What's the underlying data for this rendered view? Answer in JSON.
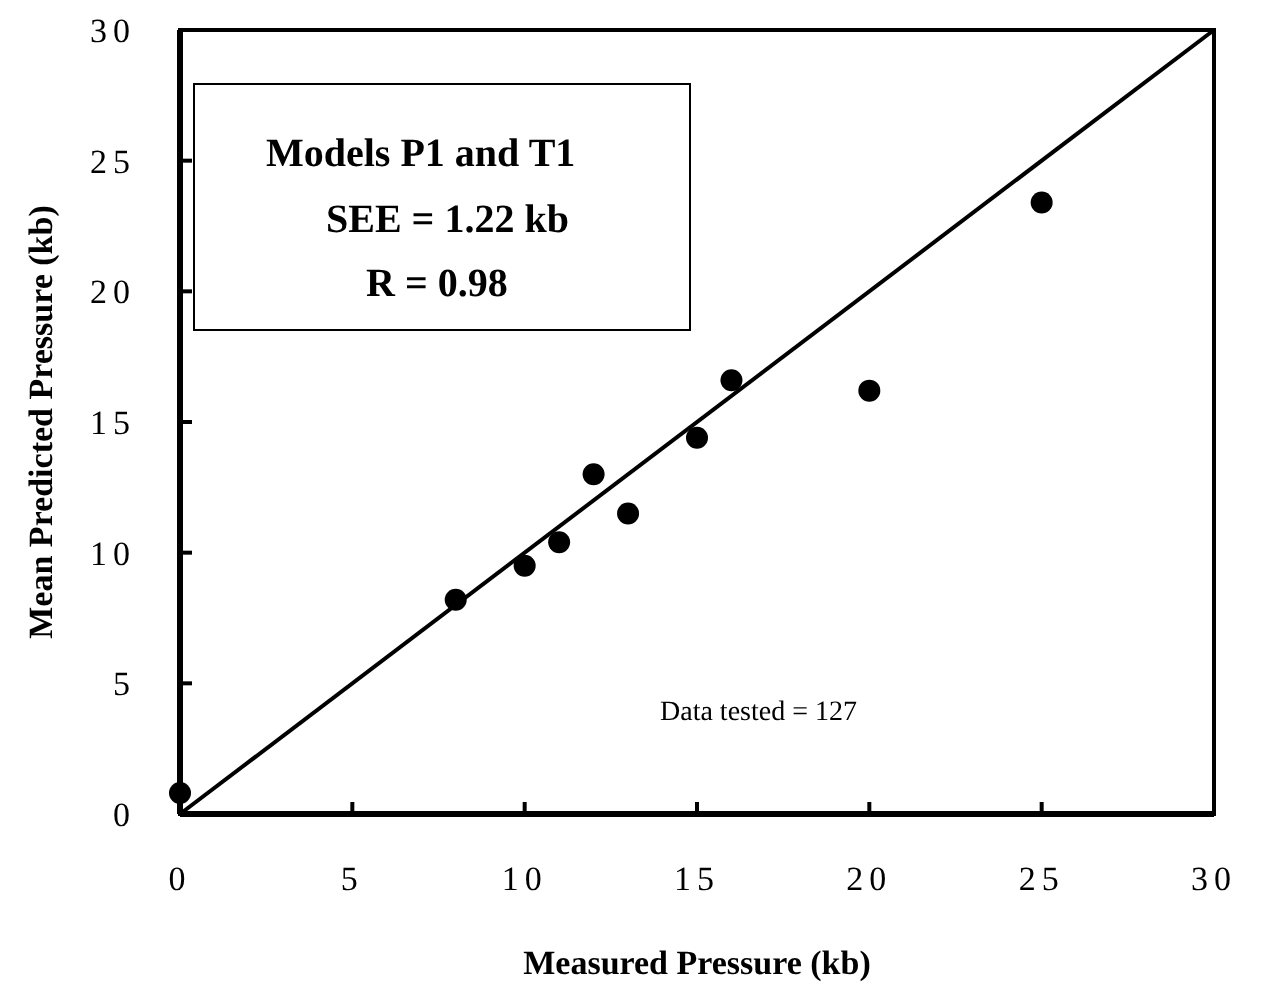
{
  "chart_data": {
    "type": "scatter",
    "xlabel": "Measured  Pressure  (kb)",
    "ylabel": "Mean  Predicted  Pressure  (kb)",
    "xlim": [
      0,
      30
    ],
    "xticks": [
      0,
      5,
      10,
      15,
      20,
      25,
      30
    ],
    "ylim": [
      0,
      30
    ],
    "yticks": [
      0,
      5,
      10,
      15,
      20,
      25,
      30
    ],
    "grid": false,
    "series": [
      {
        "marker": "circle",
        "color": "#000000",
        "x": [
          0,
          8,
          10,
          11,
          12,
          13,
          15,
          16,
          20,
          25
        ],
        "values": [
          0.8,
          8.2,
          9.5,
          10.4,
          13,
          11.5,
          14.4,
          16.6,
          16.2,
          23.4
        ]
      },
      {
        "type": "line",
        "color": "#000000",
        "x": [
          0,
          30
        ],
        "values": [
          0,
          30
        ]
      }
    ],
    "annotations": [
      "Models P1 and T1",
      "SEE = 1.22 kb",
      "R = 0.98",
      "Data tested = 127"
    ]
  }
}
